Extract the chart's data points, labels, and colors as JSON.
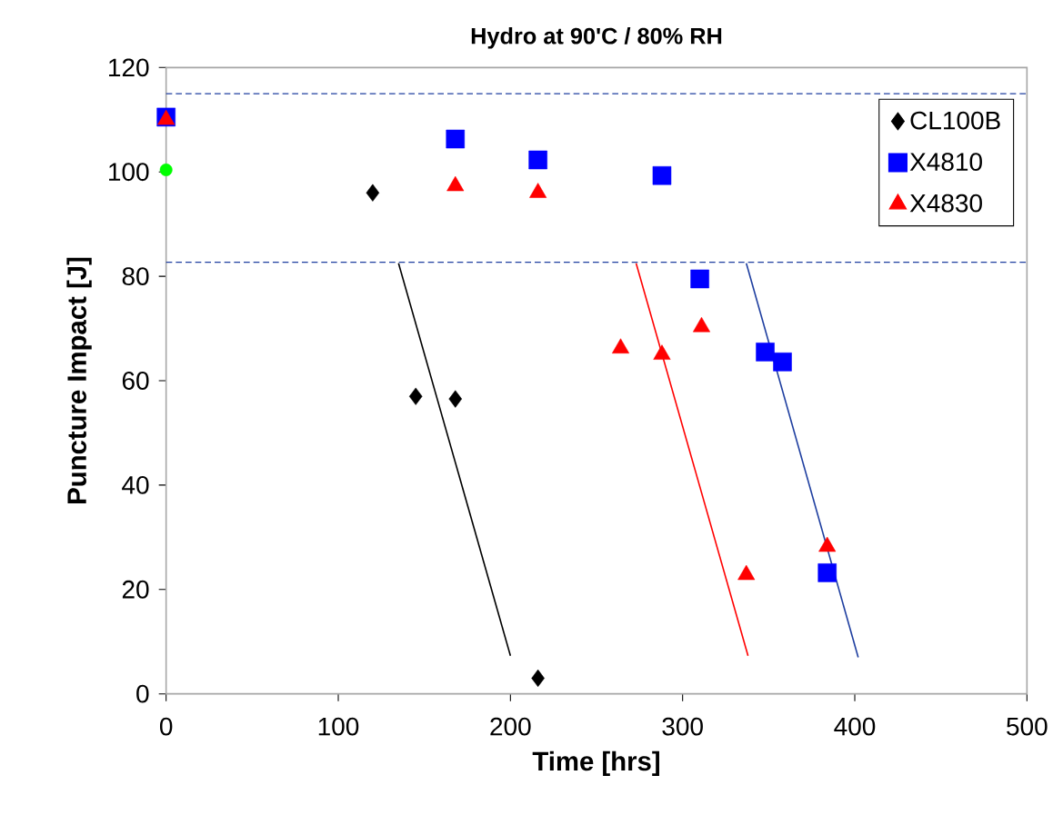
{
  "chart_data": {
    "type": "scatter",
    "title": "Hydro at 90'C / 80% RH",
    "xlabel": "Time [hrs]",
    "ylabel": "Puncture Impact [J]",
    "xlim": [
      0,
      500
    ],
    "xticks": [
      0,
      100,
      200,
      300,
      400,
      500
    ],
    "ylim": [
      0,
      120
    ],
    "yticks": [
      0,
      20,
      40,
      60,
      80,
      100,
      120
    ],
    "grid": false,
    "legend": "top right",
    "series": [
      {
        "name": "CL100B",
        "color": "#000000",
        "marker": "diamond",
        "x": [
          120,
          145,
          168,
          216
        ],
        "values": [
          96,
          57,
          56.5,
          3
        ]
      },
      {
        "name": "X4810",
        "color": "#0000ff",
        "marker": "square",
        "x": [
          0,
          168,
          216,
          288,
          310,
          348,
          358,
          384
        ],
        "values": [
          110.5,
          106.3,
          102.3,
          99.3,
          79.5,
          65.5,
          63.6,
          23.2
        ]
      },
      {
        "name": "X4830",
        "color": "#ff0000",
        "marker": "triangle",
        "x": [
          0,
          168,
          216,
          264,
          288,
          311,
          337,
          384
        ],
        "values": [
          110,
          97.3,
          96,
          66.2,
          65,
          70.3,
          22.8,
          28.2
        ]
      },
      {
        "color": "#00ff00",
        "marker": "circle",
        "x": [
          0
        ],
        "values": [
          100.4
        ]
      },
      {
        "type": "line",
        "color": "#000000",
        "marker": "none",
        "x": [
          135,
          200
        ],
        "values": [
          82.5,
          7.3
        ]
      },
      {
        "type": "line",
        "color": "#ff0000",
        "marker": "none",
        "x": [
          273,
          338
        ],
        "values": [
          82.5,
          7.3
        ]
      },
      {
        "type": "line",
        "color": "#1f3fa0",
        "marker": "none",
        "x": [
          337,
          402
        ],
        "values": [
          82.5,
          7
        ]
      }
    ],
    "ref_lines": [
      {
        "axis": "y",
        "value": 115,
        "color": "#1f3fa0",
        "line_style": "dashed"
      },
      {
        "axis": "y",
        "value": 82.7,
        "color": "#1f3fa0",
        "line_style": "dashed"
      }
    ]
  }
}
